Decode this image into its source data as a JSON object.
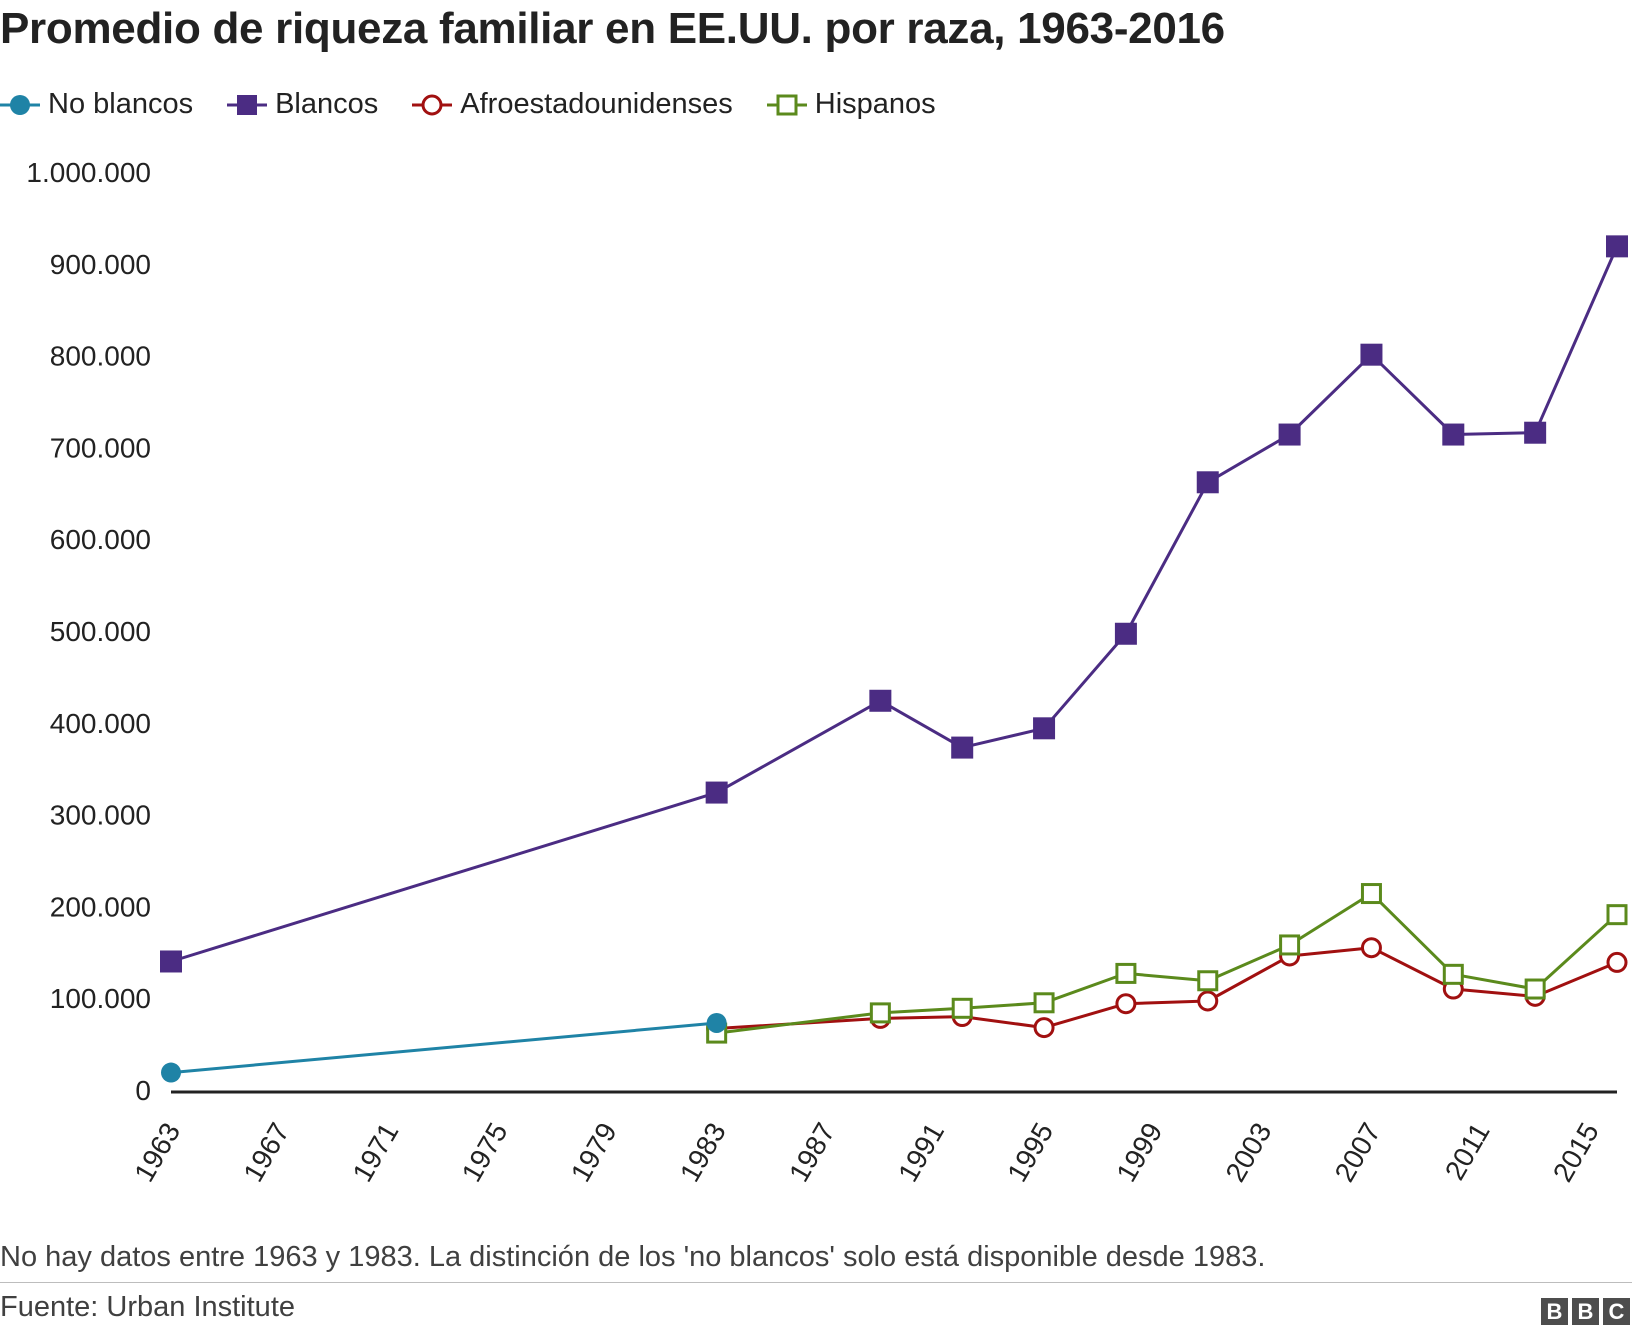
{
  "title": "Promedio de riqueza familiar en EE.UU. por raza, 1963-2016",
  "note": "No hay datos entre 1963 y 1983. La distinción de los 'no blancos' solo está disponible desde 1983.",
  "source": "Fuente: Urban Institute",
  "logo": [
    "B",
    "B",
    "C"
  ],
  "chart_data": {
    "type": "line",
    "xlim": [
      1963,
      2016
    ],
    "ylim": [
      0,
      1000000
    ],
    "x_ticks": [
      1963,
      1967,
      1971,
      1975,
      1979,
      1983,
      1987,
      1991,
      1995,
      1999,
      2003,
      2007,
      2011,
      2015
    ],
    "y_ticks": [
      0,
      100000,
      200000,
      300000,
      400000,
      500000,
      600000,
      700000,
      800000,
      900000,
      1000000
    ],
    "y_tick_labels": [
      "0",
      "100.000",
      "200.000",
      "300.000",
      "400.000",
      "500.000",
      "600.000",
      "700.000",
      "800.000",
      "900.000",
      "1.000.000"
    ],
    "legend_position": "top-left",
    "grid": false,
    "series": [
      {
        "name": "No blancos",
        "color": "#1f83a6",
        "marker": "filled-circle",
        "points": [
          [
            1963,
            19000
          ],
          [
            1983,
            73000
          ]
        ]
      },
      {
        "name": "Blancos",
        "color": "#4b2c83",
        "marker": "filled-square",
        "points": [
          [
            1963,
            140000
          ],
          [
            1983,
            324000
          ],
          [
            1989,
            424000
          ],
          [
            1992,
            373000
          ],
          [
            1995,
            394000
          ],
          [
            1998,
            497000
          ],
          [
            2001,
            662000
          ],
          [
            2004,
            714000
          ],
          [
            2007,
            801000
          ],
          [
            2010,
            714000
          ],
          [
            2013,
            716000
          ],
          [
            2016,
            919000
          ]
        ]
      },
      {
        "name": "Afroestadounidenses",
        "color": "#a11010",
        "marker": "open-circle",
        "points": [
          [
            1983,
            67000
          ],
          [
            1989,
            78000
          ],
          [
            1992,
            80000
          ],
          [
            1995,
            68000
          ],
          [
            1998,
            94000
          ],
          [
            2001,
            97000
          ],
          [
            2004,
            146000
          ],
          [
            2007,
            155000
          ],
          [
            2010,
            110000
          ],
          [
            2013,
            102000
          ],
          [
            2016,
            139000
          ]
        ]
      },
      {
        "name": "Hispanos",
        "color": "#5b8a1c",
        "marker": "open-square",
        "points": [
          [
            1983,
            62000
          ],
          [
            1989,
            84000
          ],
          [
            1992,
            89000
          ],
          [
            1995,
            95000
          ],
          [
            1998,
            127000
          ],
          [
            2001,
            119000
          ],
          [
            2004,
            158000
          ],
          [
            2007,
            214000
          ],
          [
            2010,
            126000
          ],
          [
            2013,
            110000
          ],
          [
            2016,
            191000
          ]
        ]
      }
    ]
  }
}
